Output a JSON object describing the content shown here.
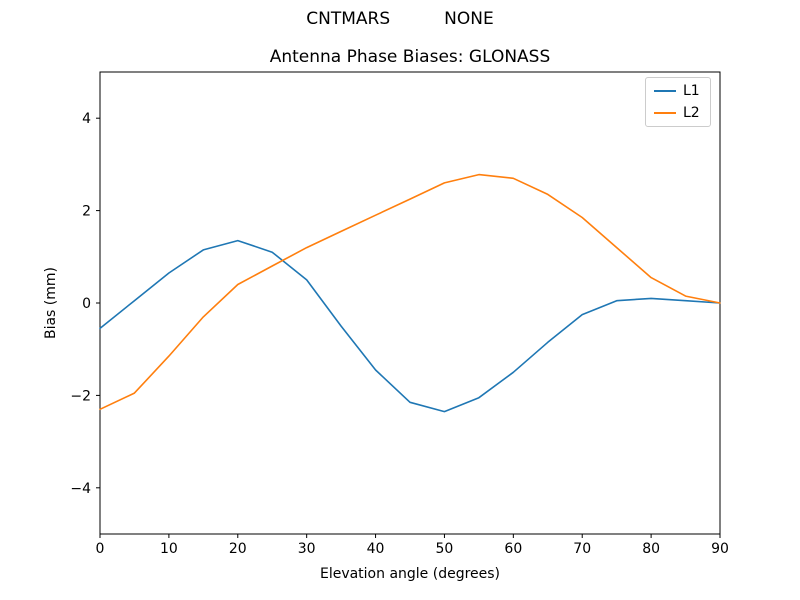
{
  "figure": {
    "suptitle": "CNTMARS          NONE",
    "title": "Antenna Phase Biases: GLONASS"
  },
  "chart_data": {
    "type": "line",
    "suptitle": "CNTMARS          NONE",
    "title": "Antenna Phase Biases: GLONASS",
    "xlabel": "Elevation angle (degrees)",
    "ylabel": "Bias (mm)",
    "xlim": [
      0,
      90
    ],
    "ylim": [
      -5,
      5
    ],
    "xticks": [
      0,
      10,
      20,
      30,
      40,
      50,
      60,
      70,
      80,
      90
    ],
    "yticks": [
      -4,
      -2,
      0,
      2,
      4
    ],
    "grid": false,
    "legend_position": "upper right",
    "x": [
      0,
      5,
      10,
      15,
      20,
      25,
      30,
      35,
      40,
      45,
      50,
      55,
      60,
      65,
      70,
      75,
      80,
      85,
      90
    ],
    "series": [
      {
        "name": "L1",
        "color": "#1f77b4",
        "values": [
          -0.55,
          0.05,
          0.65,
          1.15,
          1.35,
          1.1,
          0.5,
          -0.5,
          -1.45,
          -2.15,
          -2.35,
          -2.05,
          -1.5,
          -0.85,
          -0.25,
          0.05,
          0.1,
          0.05,
          0.0
        ]
      },
      {
        "name": "L2",
        "color": "#ff7f0e",
        "values": [
          -2.3,
          -1.95,
          -1.15,
          -0.3,
          0.4,
          0.8,
          1.2,
          1.55,
          1.9,
          2.25,
          2.6,
          2.78,
          2.7,
          2.35,
          1.85,
          1.2,
          0.55,
          0.15,
          0.0
        ]
      }
    ],
    "axis_color": "#000000",
    "tick_label_fontsize": 14
  }
}
